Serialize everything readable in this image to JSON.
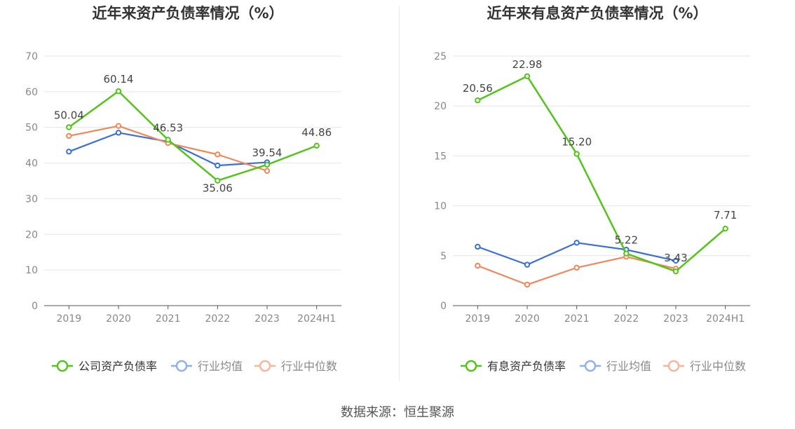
{
  "source_label": "数据来源：恒生聚源",
  "colors": {
    "company": "#52c41a",
    "avg": "#3a6fd8",
    "median": "#f0875a",
    "grid": "#e6e6e6",
    "axis": "#666666",
    "label": "#444444"
  },
  "chart_data": [
    {
      "type": "line",
      "title": "近年来资产负债率情况（%）",
      "categories": [
        "2019",
        "2020",
        "2021",
        "2022",
        "2023",
        "2024H1"
      ],
      "ylim": [
        0,
        70
      ],
      "yticks": [
        0,
        10,
        20,
        30,
        40,
        50,
        60,
        70
      ],
      "series": [
        {
          "name": "公司资产负债率",
          "key": "company",
          "values": [
            50.04,
            60.14,
            46.53,
            35.06,
            39.54,
            44.86
          ],
          "labels": [
            "50.04",
            "60.14",
            "46.53",
            "35.06",
            "39.54",
            "44.86"
          ]
        },
        {
          "name": "行业均值",
          "key": "avg",
          "values": [
            43.2,
            48.5,
            46.0,
            39.3,
            40.2,
            null
          ]
        },
        {
          "name": "行业中位数",
          "key": "median",
          "values": [
            47.6,
            50.4,
            45.6,
            42.4,
            37.8,
            null
          ]
        }
      ]
    },
    {
      "type": "line",
      "title": "近年来有息资产负债率情况（%）",
      "categories": [
        "2019",
        "2020",
        "2021",
        "2022",
        "2023",
        "2024H1"
      ],
      "ylim": [
        0,
        25
      ],
      "yticks": [
        0,
        5,
        10,
        15,
        20,
        25
      ],
      "series": [
        {
          "name": "有息资产负债率",
          "key": "company",
          "values": [
            20.56,
            22.98,
            15.2,
            5.22,
            3.43,
            7.71
          ],
          "labels": [
            "20.56",
            "22.98",
            "15.20",
            "5.22",
            "3.43",
            "7.71"
          ]
        },
        {
          "name": "行业均值",
          "key": "avg",
          "values": [
            5.9,
            4.1,
            6.3,
            5.6,
            4.5,
            null
          ]
        },
        {
          "name": "行业中位数",
          "key": "median",
          "values": [
            4.0,
            2.1,
            3.8,
            4.9,
            3.7,
            null
          ]
        }
      ]
    }
  ]
}
